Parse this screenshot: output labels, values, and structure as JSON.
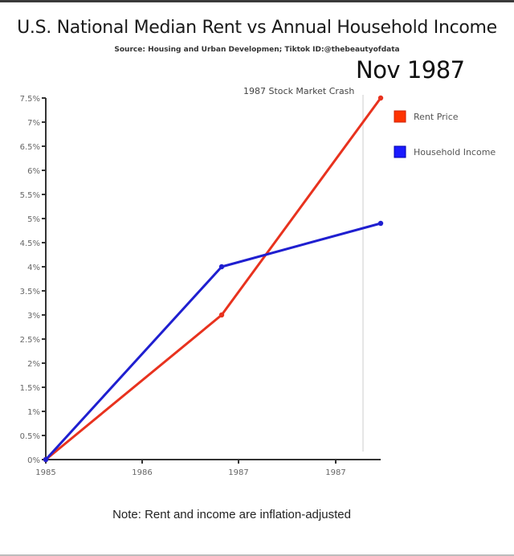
{
  "header": {
    "title": "U.S. National Median Rent vs Annual Household Income",
    "subtitle": "Source: Housing and Urban Developmen; Tiktok ID:@thebeautyofdata",
    "current_date": "Nov 1987"
  },
  "annotation": "1987 Stock Market Crash",
  "note": "Note: Rent and income are inflation-adjusted",
  "legend": [
    {
      "label": "Rent Price",
      "color": "#ff3300"
    },
    {
      "label": "Household Income",
      "color": "#1a1aff"
    }
  ],
  "chart_data": {
    "type": "line",
    "title": "U.S. National Median Rent vs Annual Household Income",
    "subtitle": "Source: Housing and Urban Developmen; Tiktok ID:@thebeautyofdata",
    "xlabel": "",
    "ylabel": "",
    "x_tick_labels": [
      "1985",
      "1986",
      "1987",
      "1987"
    ],
    "y_tick_labels": [
      "0%",
      "0.5%",
      "1%",
      "1.5%",
      "2%",
      "2.5%",
      "3%",
      "3.5%",
      "4%",
      "4.5%",
      "5%",
      "5.5%",
      "6%",
      "6.5%",
      "7%",
      "7.5%"
    ],
    "ylim": [
      0,
      7.5
    ],
    "x": [
      "1985",
      "late 1986",
      "Nov 1987"
    ],
    "series": [
      {
        "name": "Rent Price",
        "color": "#e8321e",
        "values": [
          0,
          3.0,
          7.5
        ]
      },
      {
        "name": "Household Income",
        "color": "#1f1fd0",
        "values": [
          0,
          4.0,
          4.9
        ]
      }
    ],
    "annotations": [
      {
        "text": "1987 Stock Market Crash",
        "x": "Oct 1987"
      }
    ],
    "grid": false,
    "legend_position": "right"
  }
}
